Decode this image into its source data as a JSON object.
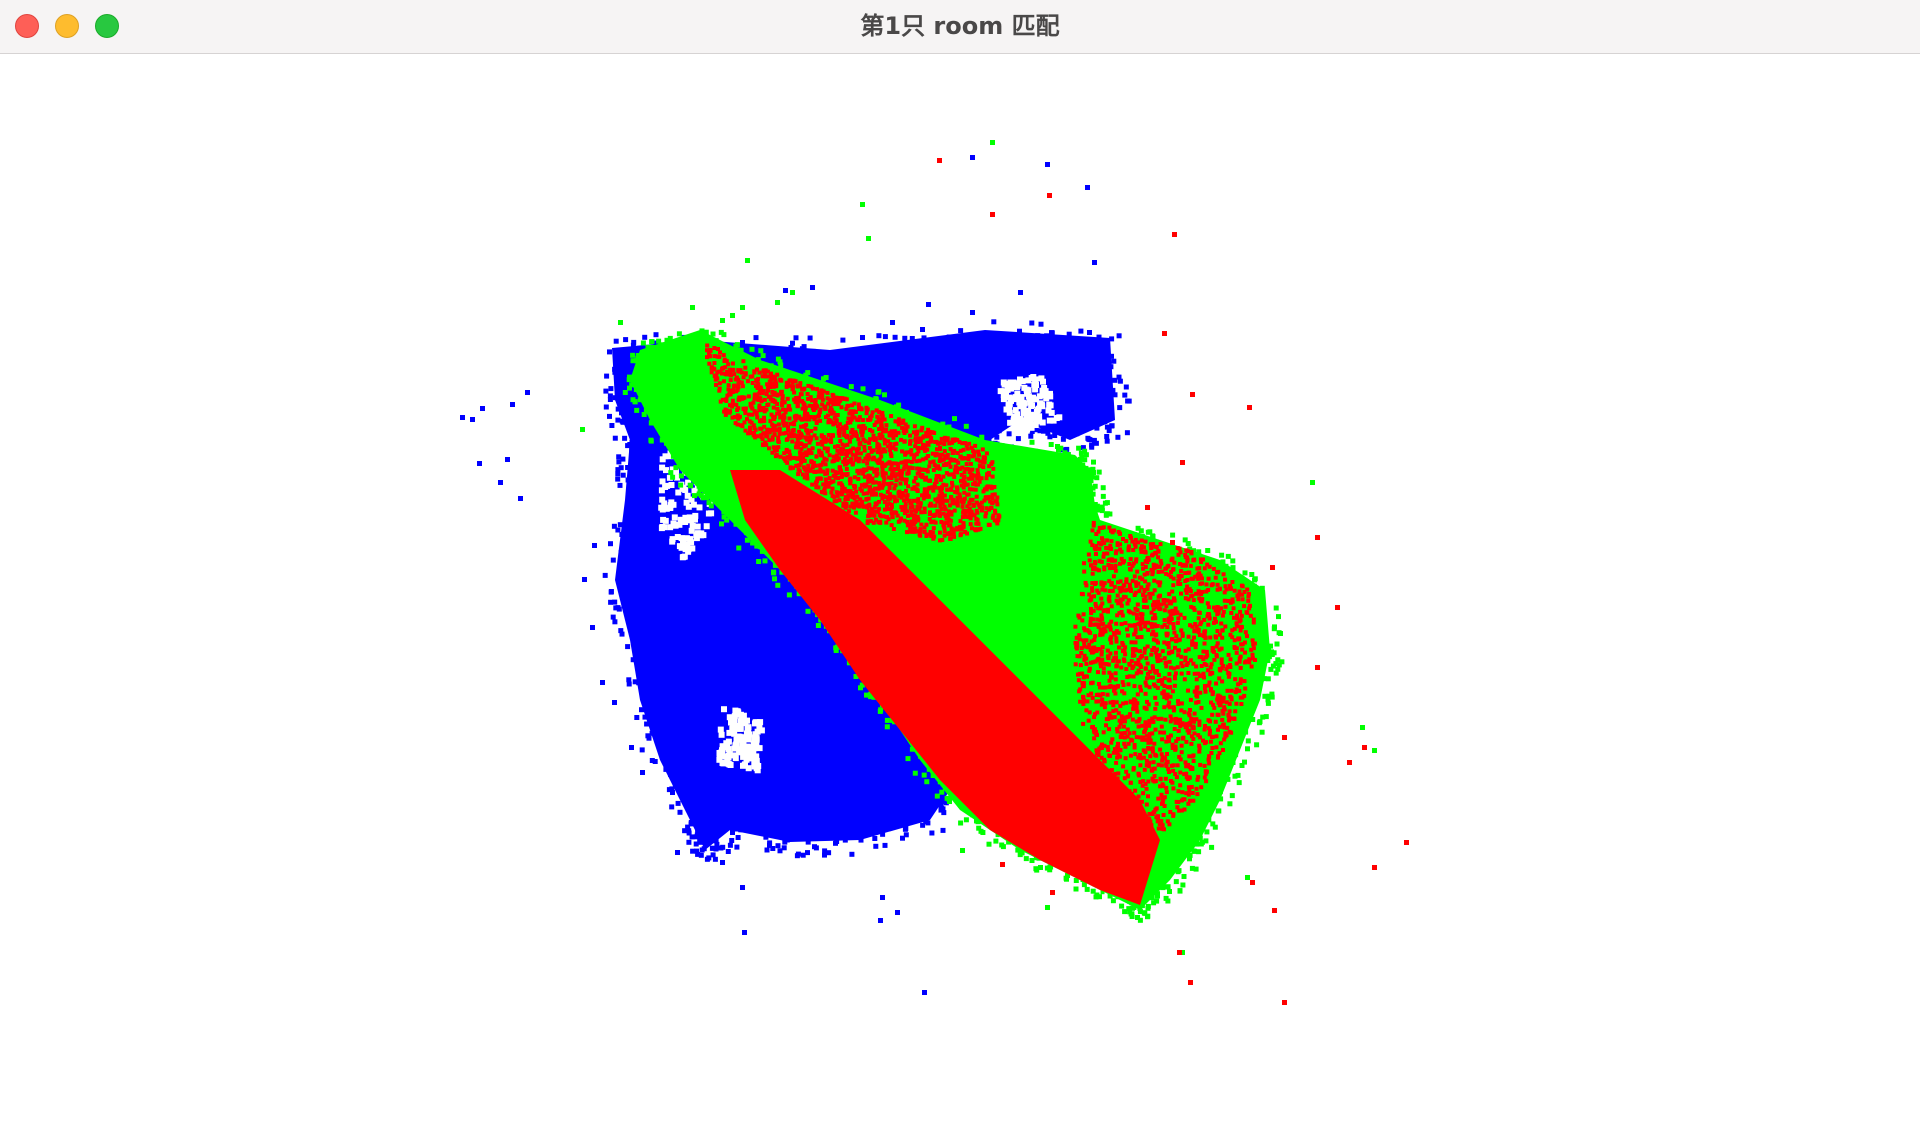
{
  "window": {
    "title": "第1只 room 匹配"
  },
  "controls": {
    "close": "close-button",
    "minimize": "minimize-button",
    "zoom": "zoom-button"
  },
  "point_cloud": {
    "colors": {
      "source": "#0000ff",
      "target_a": "#00ff00",
      "target_b": "#ff0000"
    }
  }
}
